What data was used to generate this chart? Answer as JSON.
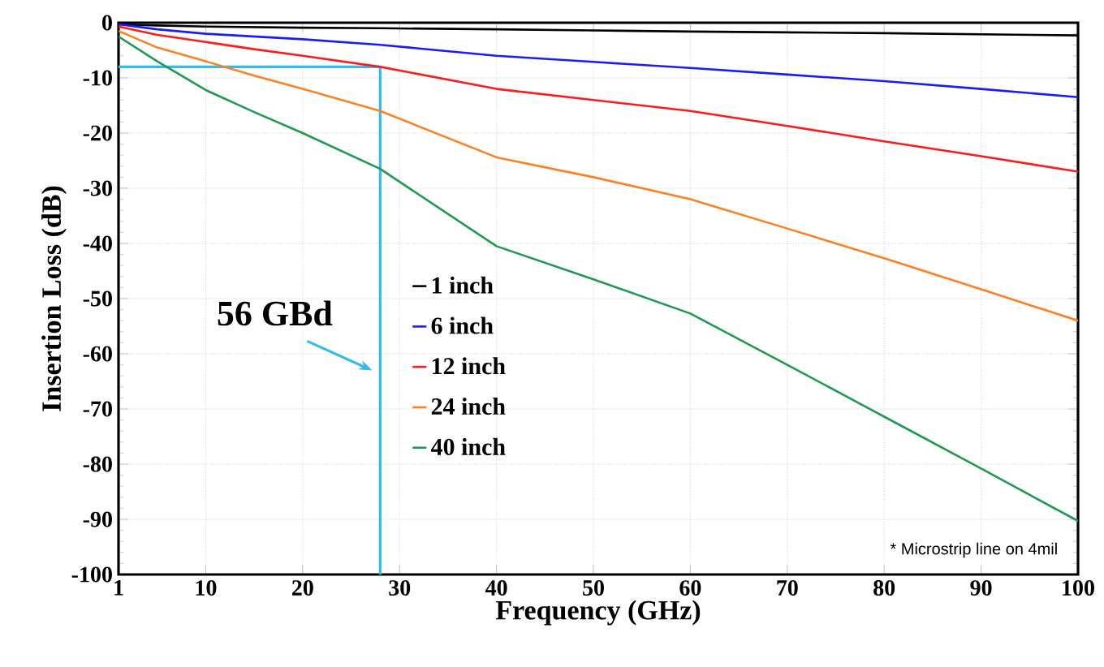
{
  "chart_data": {
    "type": "line",
    "xlabel": "Frequency (GHz)",
    "ylabel": "Insertion Loss (dB)",
    "x": [
      1,
      5,
      10,
      15,
      20,
      28,
      40,
      50,
      60,
      70,
      80,
      90,
      100
    ],
    "series": [
      {
        "name": "1 inch",
        "color": "#000000",
        "values": [
          -0.3,
          -0.5,
          -0.7,
          -0.8,
          -0.9,
          -1.0,
          -1.2,
          -1.4,
          -1.6,
          -1.75,
          -1.9,
          -2.1,
          -2.3
        ]
      },
      {
        "name": "6 inch",
        "color": "#1a1aff",
        "values": [
          -0.3,
          -1.2,
          -2,
          -2.5,
          -3,
          -4,
          -6,
          -7.1,
          -8.2,
          -9.4,
          -10.6,
          -12,
          -13.5
        ]
      },
      {
        "name": "12 inch",
        "color": "#ff1a1a",
        "values": [
          -0.7,
          -2.2,
          -3.5,
          -4.8,
          -6,
          -8,
          -12,
          -14,
          -16,
          -18.7,
          -21.5,
          -24.2,
          -27
        ]
      },
      {
        "name": "24 inch",
        "color": "#ff8020",
        "values": [
          -1.5,
          -4.5,
          -7,
          -9.6,
          -12,
          -16,
          -24.4,
          -28,
          -32,
          -37.3,
          -42.7,
          -48.3,
          -54
        ]
      },
      {
        "name": "40 inch",
        "color": "#1f9a50",
        "values": [
          -2.5,
          -7,
          -12.2,
          -16.2,
          -20,
          -26.5,
          -40.5,
          -46.5,
          -52.7,
          -62,
          -71.4,
          -80.8,
          -90.3
        ]
      }
    ],
    "xlim": [
      1,
      100
    ],
    "xticks": [
      1,
      10,
      20,
      30,
      40,
      50,
      60,
      70,
      80,
      90,
      100
    ],
    "ylim": [
      -100,
      0
    ],
    "yticks": [
      -100,
      -90,
      -80,
      -70,
      -60,
      -50,
      -40,
      -30,
      -20,
      -10,
      0
    ],
    "grid": true,
    "legend": "center",
    "marker": "none",
    "line_style": "solid",
    "ref_lines": [
      {
        "axis": "x",
        "value": 28,
        "color": "#33bbee"
      },
      {
        "axis": "y",
        "value": -8,
        "color": "#33bbee"
      }
    ],
    "annotations": [
      "56 GBd",
      "* Microstrip line on 4mil"
    ]
  }
}
